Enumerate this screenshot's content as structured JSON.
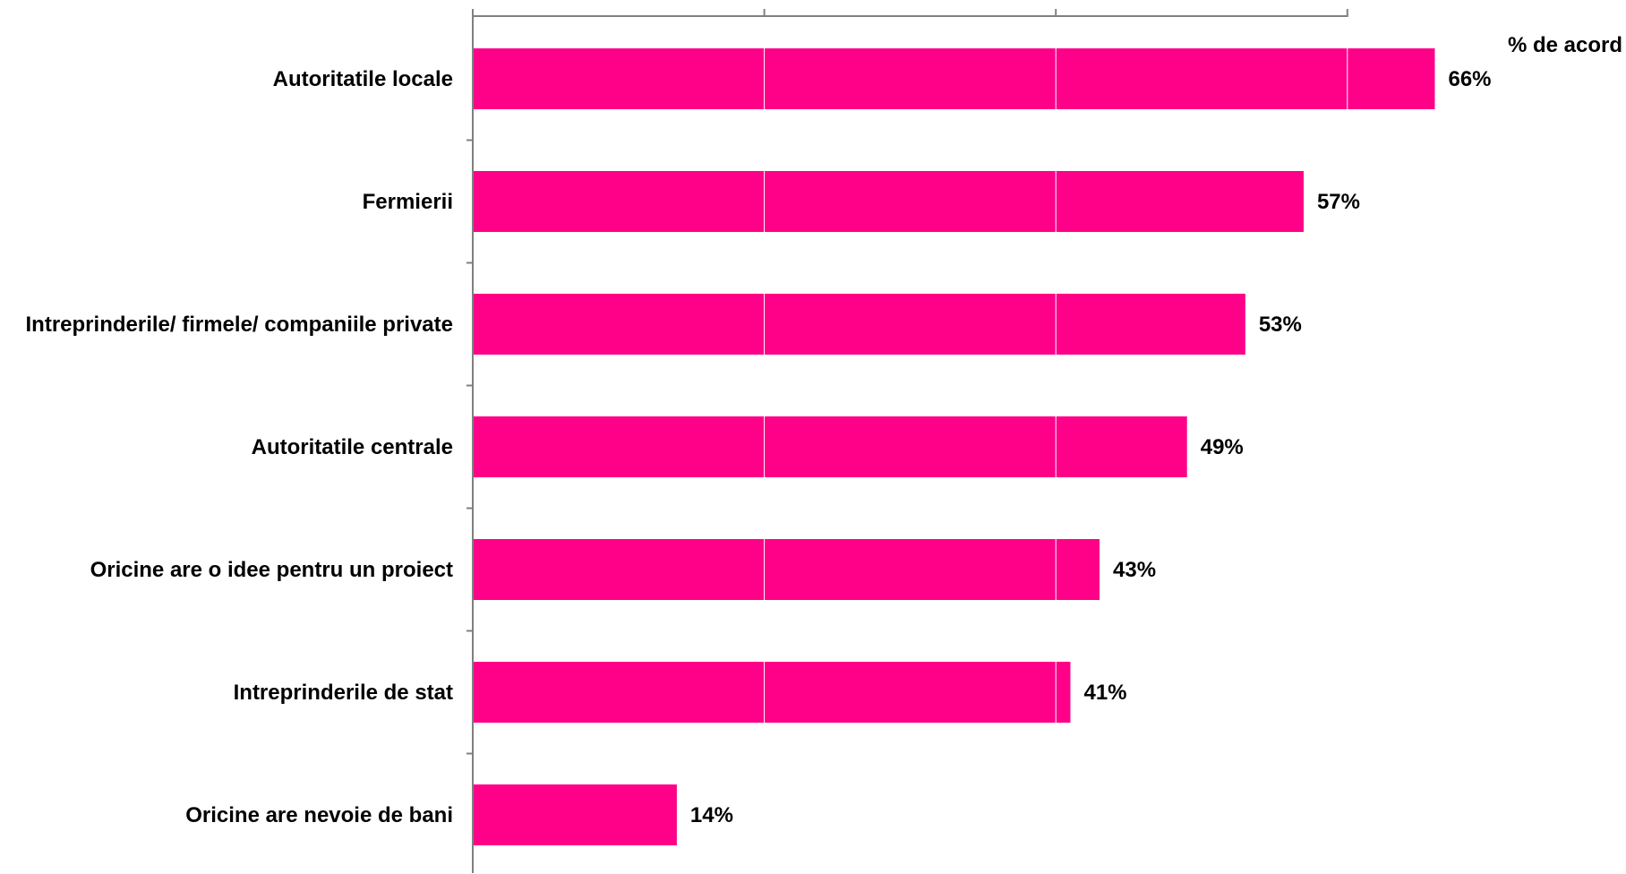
{
  "chart_data": {
    "type": "bar",
    "orientation": "horizontal",
    "categories": [
      "Autoritatile locale",
      "Fermierii",
      "Intreprinderile/ firmele/ companiile private",
      "Autoritatile centrale",
      "Oricine are o idee pentru un proiect",
      "Intreprinderile de stat",
      "Oricine are nevoie de bani"
    ],
    "values": [
      66,
      57,
      53,
      49,
      43,
      41,
      14
    ],
    "value_labels": [
      "66%",
      "57%",
      "53%",
      "49%",
      "43%",
      "41%",
      "14%"
    ],
    "unit_label": "% de acord",
    "xlim": [
      0,
      100
    ],
    "x_tick_values": [
      0,
      20,
      40,
      60
    ],
    "x_tick_labels_shown": false,
    "grid": "vertical",
    "legend": "none",
    "colors": {
      "bar": "#ff0088",
      "axis": "#808080",
      "grid": "#ffffff",
      "text": "#000000"
    }
  }
}
